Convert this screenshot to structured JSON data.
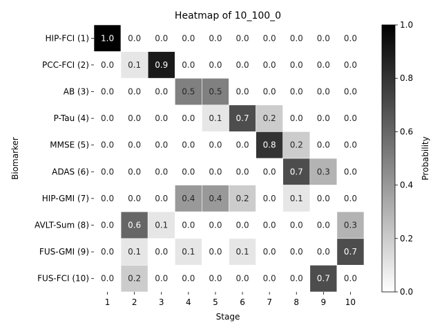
{
  "chart_data": {
    "type": "heatmap",
    "title": "Heatmap of 10_100_0",
    "xlabel": "Stage",
    "ylabel": "Biomarker",
    "colorbar_label": "Probability",
    "x_categories": [
      "1",
      "2",
      "3",
      "4",
      "5",
      "6",
      "7",
      "8",
      "9",
      "10"
    ],
    "y_categories": [
      "HIP-FCI (1)",
      "PCC-FCI (2)",
      "AB (3)",
      "P-Tau (4)",
      "MMSE (5)",
      "ADAS (6)",
      "HIP-GMI (7)",
      "AVLT-Sum (8)",
      "FUS-GMI (9)",
      "FUS-FCI (10)"
    ],
    "values": [
      [
        1.0,
        0.0,
        0.0,
        0.0,
        0.0,
        0.0,
        0.0,
        0.0,
        0.0,
        0.0
      ],
      [
        0.0,
        0.1,
        0.9,
        0.0,
        0.0,
        0.0,
        0.0,
        0.0,
        0.0,
        0.0
      ],
      [
        0.0,
        0.0,
        0.0,
        0.5,
        0.5,
        0.0,
        0.0,
        0.0,
        0.0,
        0.0
      ],
      [
        0.0,
        0.0,
        0.0,
        0.0,
        0.1,
        0.7,
        0.2,
        0.0,
        0.0,
        0.0
      ],
      [
        0.0,
        0.0,
        0.0,
        0.0,
        0.0,
        0.0,
        0.8,
        0.2,
        0.0,
        0.0
      ],
      [
        0.0,
        0.0,
        0.0,
        0.0,
        0.0,
        0.0,
        0.0,
        0.7,
        0.3,
        0.0
      ],
      [
        0.0,
        0.0,
        0.0,
        0.4,
        0.4,
        0.2,
        0.0,
        0.1,
        0.0,
        0.0
      ],
      [
        0.0,
        0.6,
        0.1,
        0.0,
        0.0,
        0.0,
        0.0,
        0.0,
        0.0,
        0.3
      ],
      [
        0.0,
        0.1,
        0.0,
        0.1,
        0.0,
        0.1,
        0.0,
        0.0,
        0.0,
        0.7
      ],
      [
        0.0,
        0.2,
        0.0,
        0.0,
        0.0,
        0.0,
        0.0,
        0.0,
        0.7,
        0.0
      ]
    ],
    "colorbar_range": [
      0.0,
      1.0
    ],
    "colorbar_ticks": [
      "0.0",
      "0.2",
      "0.4",
      "0.6",
      "0.8",
      "1.0"
    ],
    "colormap": "Greys",
    "colormap_low": "#ffffff",
    "colormap_high": "#000000",
    "grid": false
  }
}
